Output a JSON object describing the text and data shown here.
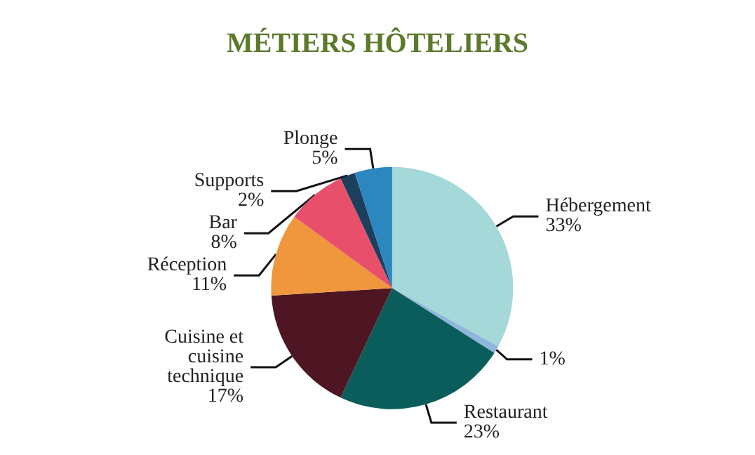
{
  "chart_data": {
    "type": "pie",
    "title": "MÉTIERS HÔTELIERS",
    "categories": [
      "Hébergement",
      null,
      "Restaurant",
      "Cuisine et\ncuisine\ntechnique",
      "Réception",
      "Bar",
      "Supports",
      "Plonge"
    ],
    "values": [
      33,
      1,
      23,
      17,
      11,
      8,
      2,
      5
    ],
    "colors": [
      "#a5d8d8",
      "#8fb6dc",
      "#0b5d5b",
      "#4d1622",
      "#f0963c",
      "#e84f6a",
      "#1d3f5e",
      "#2c86c0"
    ],
    "value_labels": [
      "33%",
      "1%",
      "23%",
      "17%",
      "11%",
      "8%",
      "2%",
      "5%"
    ],
    "legend": false
  }
}
